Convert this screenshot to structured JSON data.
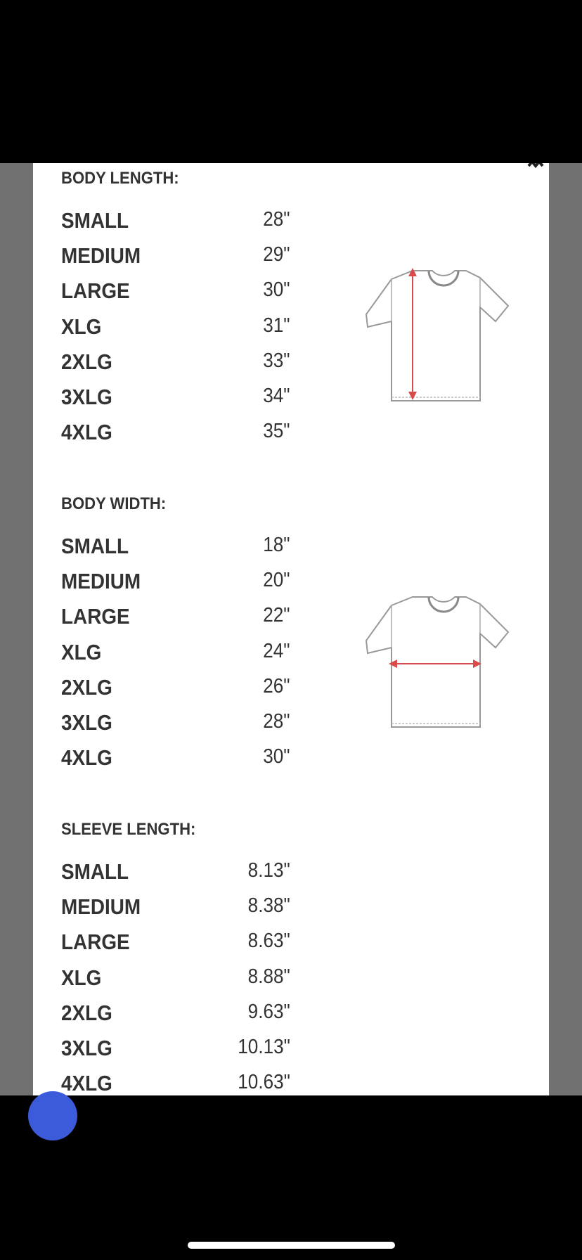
{
  "sections": [
    {
      "heading": "BODY LENGTH:",
      "measure": "vertical",
      "rows": [
        {
          "size": "SMALL",
          "value": "28\""
        },
        {
          "size": "MEDIUM",
          "value": "29\""
        },
        {
          "size": "LARGE",
          "value": "30\""
        },
        {
          "size": "XLG",
          "value": "31\""
        },
        {
          "size": "2XLG",
          "value": "33\""
        },
        {
          "size": "3XLG",
          "value": "34\""
        },
        {
          "size": "4XLG",
          "value": "35\""
        }
      ]
    },
    {
      "heading": "BODY WIDTH:",
      "measure": "horizontal",
      "rows": [
        {
          "size": "SMALL",
          "value": "18\""
        },
        {
          "size": "MEDIUM",
          "value": "20\""
        },
        {
          "size": "LARGE",
          "value": "22\""
        },
        {
          "size": "XLG",
          "value": "24\""
        },
        {
          "size": "2XLG",
          "value": "26\""
        },
        {
          "size": "3XLG",
          "value": "28\""
        },
        {
          "size": "4XLG",
          "value": "30\""
        }
      ]
    },
    {
      "heading": "SLEEVE LENGTH:",
      "rows": [
        {
          "size": "SMALL",
          "value": "8.13\""
        },
        {
          "size": "MEDIUM",
          "value": "8.38\""
        },
        {
          "size": "LARGE",
          "value": "8.63\""
        },
        {
          "size": "XLG",
          "value": "8.88\""
        },
        {
          "size": "2XLG",
          "value": "9.63\""
        },
        {
          "size": "3XLG",
          "value": "10.13\""
        },
        {
          "size": "4XLG",
          "value": "10.63\""
        }
      ]
    }
  ],
  "colors": {
    "arrow": "#d94a4a",
    "backdrop": "#717171",
    "text": "#333333"
  },
  "icons": {
    "close": "close-icon",
    "shirt": "tshirt-diagram-icon",
    "chat": "chat-bubble-icon"
  }
}
